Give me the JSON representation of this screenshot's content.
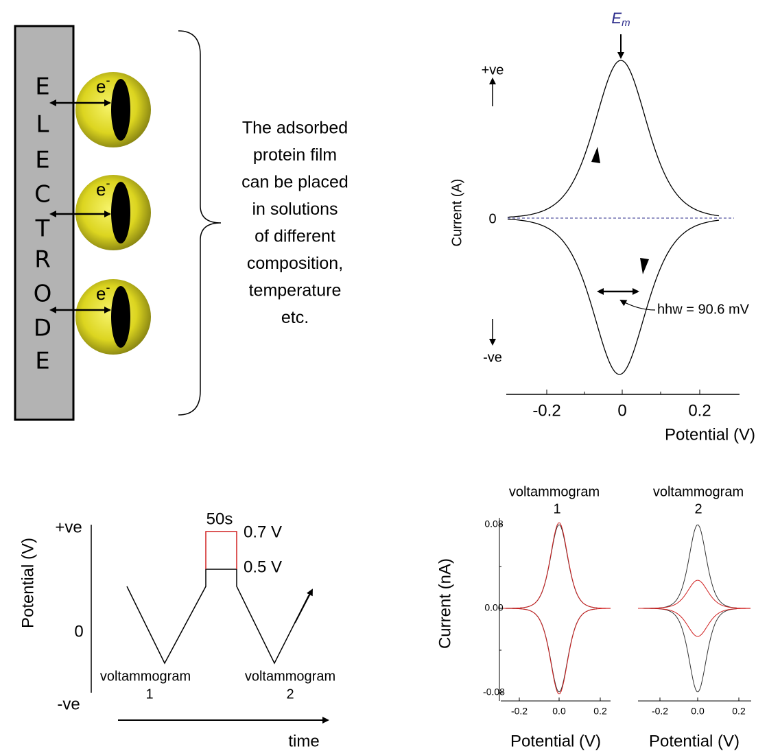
{
  "electrode": {
    "letters": [
      "E",
      "L",
      "E",
      "C",
      "T",
      "R",
      "O",
      "D",
      "E"
    ],
    "electron_labels": [
      {
        "base": "e",
        "sup": "-"
      },
      {
        "base": "e",
        "sup": "-"
      },
      {
        "base": "e",
        "sup": "-"
      }
    ]
  },
  "caption": {
    "lines": [
      "The adsorbed",
      "protein film",
      "can be placed",
      "in solutions",
      "of different",
      "composition,",
      "temperature",
      "etc."
    ]
  },
  "cv_plot": {
    "em_base": "E",
    "em_sub": "m",
    "plus_label": "+ve",
    "zero_label": "0",
    "minus_label": "-ve",
    "y_axis_label": "Current (A)",
    "x_axis_label": "Potential  (V)",
    "x_ticks": [
      "-0.2",
      "0",
      "0.2"
    ],
    "hhw_label": "hhw = 90.6 mV"
  },
  "protocol": {
    "plus_label": "+ve",
    "zero_label": "0",
    "minus_label": "-ve",
    "y_axis_label": "Potential (V)",
    "hold_time": "50s",
    "upper_potential": "0.7 V",
    "lower_potential": "0.5 V",
    "scans": [
      {
        "name": "voltammogram",
        "number": "1"
      },
      {
        "name": "voltammogram",
        "number": "2"
      }
    ],
    "x_axis_label": "time"
  },
  "voltammograms": {
    "y_axis_label": "Current (nA)",
    "y_ticks": [
      "0.08",
      "0.00",
      "-0.08"
    ],
    "panels": [
      {
        "title": "voltammogram",
        "number": "1",
        "x_ticks": [
          "-0.2",
          "0.0",
          "0.2"
        ],
        "x_axis_label": "Potential (V)"
      },
      {
        "title": "voltammogram",
        "number": "2",
        "x_ticks": [
          "-0.2",
          "0.0",
          "0.2"
        ],
        "x_axis_label": "Potential (V)"
      }
    ]
  }
}
